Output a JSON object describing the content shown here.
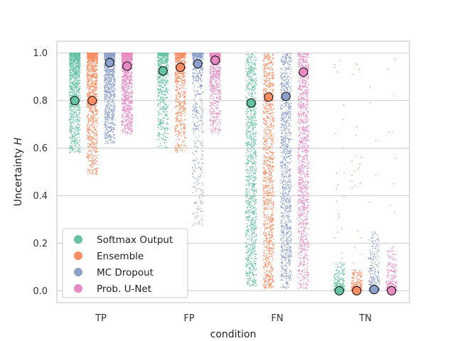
{
  "chart_data": {
    "type": "scatter",
    "subtype": "strip plot with mean markers",
    "xlabel": "condition",
    "ylabel": "Uncertainty H",
    "ylabel_text": "Uncertainty ",
    "ylabel_var": "H",
    "categories": [
      "TP",
      "FP",
      "FN",
      "TN"
    ],
    "ylim": [
      -0.05,
      1.05
    ],
    "yticks": [
      "0.0",
      "0.2",
      "0.4",
      "0.6",
      "0.8",
      "1.0"
    ],
    "ytick_values": [
      0.0,
      0.2,
      0.4,
      0.6,
      0.8,
      1.0
    ],
    "grid": "horizontal",
    "legend_position": "lower-left",
    "series": [
      {
        "name": "Softmax Output",
        "color": "#66c2a5",
        "means": [
          0.8,
          0.925,
          0.79,
          0.0
        ]
      },
      {
        "name": "Ensemble",
        "color": "#fc8d62",
        "means": [
          0.8,
          0.94,
          0.815,
          0.0
        ]
      },
      {
        "name": "MC Dropout",
        "color": "#8da0cb",
        "means": [
          0.96,
          0.955,
          0.818,
          0.005
        ]
      },
      {
        "name": "Prob. U-Net",
        "color": "#e78ac3",
        "means": [
          0.945,
          0.97,
          0.92,
          0.0
        ]
      }
    ]
  }
}
